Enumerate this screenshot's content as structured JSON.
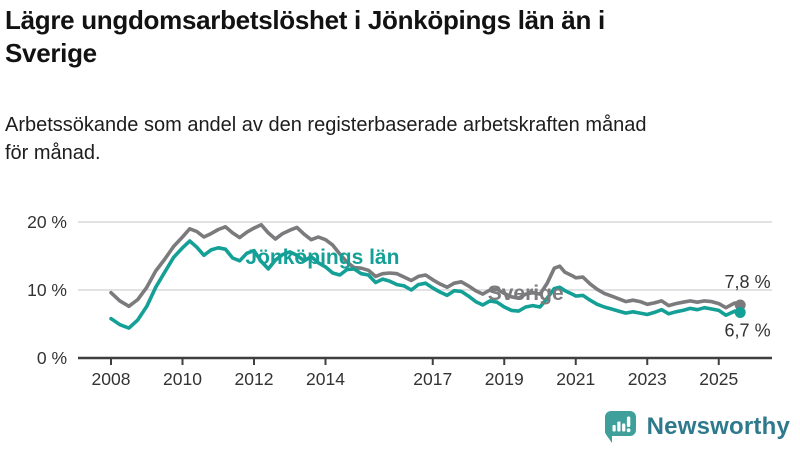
{
  "header": {
    "title_lines": [
      "Lägre ungdomsarbetslöshet i Jönköpings län än i",
      "Sverige"
    ],
    "subtitle_lines": [
      "Arbetssökande som andel av den registerbaserade arbetskraften månad",
      "för månad."
    ]
  },
  "chart_data": {
    "type": "line",
    "title": "Lägre ungdomsarbetslöshet i Jönköpings län än i Sverige",
    "subtitle": "Arbetssökande som andel av den registerbaserade arbetskraften månad för månad.",
    "unit": "%",
    "grid": "horizontal-only",
    "legend": "inline-labels",
    "xlim": [
      2007.9,
      2026.45
    ],
    "ylim": [
      0,
      22
    ],
    "x_ticks": [
      {
        "value": 2008,
        "label": "2008"
      },
      {
        "value": 2010,
        "label": "2010"
      },
      {
        "value": 2012,
        "label": "2012"
      },
      {
        "value": 2014,
        "label": "2014"
      },
      {
        "value": 2017,
        "label": "2017"
      },
      {
        "value": 2019,
        "label": "2019"
      },
      {
        "value": 2021,
        "label": "2021"
      },
      {
        "value": 2023,
        "label": "2023"
      },
      {
        "value": 2025,
        "label": "2025"
      }
    ],
    "y_ticks": [
      {
        "value": 0,
        "label": "0 %"
      },
      {
        "value": 10,
        "label": "10 %"
      },
      {
        "value": 20,
        "label": "20 %"
      }
    ],
    "colors": {
      "sverige": "#7b7b7e",
      "jonkoping": "#14a096",
      "grid": "#d9d9d9",
      "axis": "#3f3f3f",
      "tick_text": "#333333"
    },
    "series": [
      {
        "name": "Sverige",
        "color": "#7b7b7e",
        "end_label": "7,8 %",
        "end_value": 7.8,
        "points": [
          [
            2008.0,
            9.6
          ],
          [
            2008.25,
            8.4
          ],
          [
            2008.5,
            7.6
          ],
          [
            2008.75,
            8.6
          ],
          [
            2009.0,
            10.4
          ],
          [
            2009.25,
            12.8
          ],
          [
            2009.5,
            14.5
          ],
          [
            2009.75,
            16.4
          ],
          [
            2010.0,
            17.8
          ],
          [
            2010.2,
            19.0
          ],
          [
            2010.4,
            18.6
          ],
          [
            2010.6,
            17.8
          ],
          [
            2010.8,
            18.3
          ],
          [
            2011.0,
            18.9
          ],
          [
            2011.2,
            19.3
          ],
          [
            2011.4,
            18.4
          ],
          [
            2011.6,
            17.7
          ],
          [
            2011.8,
            18.5
          ],
          [
            2012.0,
            19.1
          ],
          [
            2012.2,
            19.6
          ],
          [
            2012.4,
            18.4
          ],
          [
            2012.6,
            17.5
          ],
          [
            2012.8,
            18.3
          ],
          [
            2013.0,
            18.8
          ],
          [
            2013.2,
            19.2
          ],
          [
            2013.4,
            18.2
          ],
          [
            2013.6,
            17.4
          ],
          [
            2013.8,
            17.8
          ],
          [
            2014.0,
            17.4
          ],
          [
            2014.2,
            16.6
          ],
          [
            2014.4,
            15.3
          ],
          [
            2014.6,
            14.1
          ],
          [
            2014.8,
            13.3
          ],
          [
            2015.0,
            13.2
          ],
          [
            2015.2,
            12.9
          ],
          [
            2015.4,
            12.0
          ],
          [
            2015.6,
            12.4
          ],
          [
            2015.8,
            12.5
          ],
          [
            2016.0,
            12.4
          ],
          [
            2016.2,
            11.9
          ],
          [
            2016.4,
            11.4
          ],
          [
            2016.6,
            12.0
          ],
          [
            2016.8,
            12.2
          ],
          [
            2017.0,
            11.5
          ],
          [
            2017.2,
            10.9
          ],
          [
            2017.4,
            10.4
          ],
          [
            2017.6,
            11.0
          ],
          [
            2017.8,
            11.2
          ],
          [
            2018.0,
            10.6
          ],
          [
            2018.2,
            9.9
          ],
          [
            2018.4,
            9.4
          ],
          [
            2018.6,
            10.0
          ],
          [
            2018.8,
            10.1
          ],
          [
            2019.0,
            9.5
          ],
          [
            2019.2,
            9.0
          ],
          [
            2019.4,
            8.8
          ],
          [
            2019.6,
            9.4
          ],
          [
            2019.8,
            9.6
          ],
          [
            2020.0,
            9.4
          ],
          [
            2020.2,
            11.0
          ],
          [
            2020.4,
            13.2
          ],
          [
            2020.55,
            13.5
          ],
          [
            2020.7,
            12.6
          ],
          [
            2020.9,
            12.1
          ],
          [
            2021.0,
            11.8
          ],
          [
            2021.2,
            11.9
          ],
          [
            2021.4,
            10.9
          ],
          [
            2021.6,
            10.1
          ],
          [
            2021.8,
            9.5
          ],
          [
            2022.0,
            9.1
          ],
          [
            2022.2,
            8.7
          ],
          [
            2022.4,
            8.3
          ],
          [
            2022.6,
            8.5
          ],
          [
            2022.8,
            8.3
          ],
          [
            2023.0,
            7.9
          ],
          [
            2023.2,
            8.1
          ],
          [
            2023.4,
            8.4
          ],
          [
            2023.6,
            7.7
          ],
          [
            2023.8,
            8.0
          ],
          [
            2024.0,
            8.2
          ],
          [
            2024.2,
            8.4
          ],
          [
            2024.4,
            8.2
          ],
          [
            2024.6,
            8.4
          ],
          [
            2024.8,
            8.3
          ],
          [
            2025.0,
            8.0
          ],
          [
            2025.2,
            7.4
          ],
          [
            2025.45,
            8.1
          ],
          [
            2025.6,
            7.8
          ]
        ]
      },
      {
        "name": "Jönköpings län",
        "color": "#14a096",
        "end_label": "6,7 %",
        "end_value": 6.7,
        "points": [
          [
            2008.0,
            5.8
          ],
          [
            2008.25,
            4.9
          ],
          [
            2008.5,
            4.4
          ],
          [
            2008.75,
            5.6
          ],
          [
            2009.0,
            7.6
          ],
          [
            2009.25,
            10.4
          ],
          [
            2009.5,
            12.6
          ],
          [
            2009.75,
            14.8
          ],
          [
            2010.0,
            16.2
          ],
          [
            2010.2,
            17.2
          ],
          [
            2010.4,
            16.3
          ],
          [
            2010.6,
            15.1
          ],
          [
            2010.8,
            15.9
          ],
          [
            2011.0,
            16.2
          ],
          [
            2011.2,
            16.0
          ],
          [
            2011.4,
            14.7
          ],
          [
            2011.6,
            14.3
          ],
          [
            2011.8,
            15.4
          ],
          [
            2012.0,
            15.8
          ],
          [
            2012.2,
            14.2
          ],
          [
            2012.4,
            13.1
          ],
          [
            2012.6,
            14.4
          ],
          [
            2012.8,
            15.2
          ],
          [
            2013.0,
            15.6
          ],
          [
            2013.2,
            15.1
          ],
          [
            2013.4,
            14.3
          ],
          [
            2013.6,
            14.9
          ],
          [
            2013.8,
            14.0
          ],
          [
            2014.0,
            13.4
          ],
          [
            2014.2,
            12.5
          ],
          [
            2014.4,
            12.2
          ],
          [
            2014.6,
            13.0
          ],
          [
            2014.8,
            13.1
          ],
          [
            2015.0,
            12.4
          ],
          [
            2015.2,
            12.2
          ],
          [
            2015.4,
            11.1
          ],
          [
            2015.6,
            11.6
          ],
          [
            2015.8,
            11.3
          ],
          [
            2016.0,
            10.8
          ],
          [
            2016.2,
            10.6
          ],
          [
            2016.4,
            10.0
          ],
          [
            2016.6,
            10.8
          ],
          [
            2016.8,
            11.0
          ],
          [
            2017.0,
            10.3
          ],
          [
            2017.2,
            9.7
          ],
          [
            2017.4,
            9.2
          ],
          [
            2017.6,
            9.9
          ],
          [
            2017.8,
            9.8
          ],
          [
            2018.0,
            9.1
          ],
          [
            2018.2,
            8.3
          ],
          [
            2018.4,
            7.8
          ],
          [
            2018.6,
            8.4
          ],
          [
            2018.8,
            8.2
          ],
          [
            2019.0,
            7.5
          ],
          [
            2019.2,
            7.0
          ],
          [
            2019.4,
            6.9
          ],
          [
            2019.6,
            7.5
          ],
          [
            2019.8,
            7.7
          ],
          [
            2020.0,
            7.5
          ],
          [
            2020.2,
            8.8
          ],
          [
            2020.4,
            10.2
          ],
          [
            2020.55,
            10.4
          ],
          [
            2020.7,
            9.9
          ],
          [
            2020.9,
            9.4
          ],
          [
            2021.0,
            9.1
          ],
          [
            2021.2,
            9.2
          ],
          [
            2021.4,
            8.5
          ],
          [
            2021.6,
            7.9
          ],
          [
            2021.8,
            7.5
          ],
          [
            2022.0,
            7.2
          ],
          [
            2022.2,
            6.9
          ],
          [
            2022.4,
            6.6
          ],
          [
            2022.6,
            6.8
          ],
          [
            2022.8,
            6.6
          ],
          [
            2023.0,
            6.4
          ],
          [
            2023.2,
            6.7
          ],
          [
            2023.4,
            7.1
          ],
          [
            2023.6,
            6.5
          ],
          [
            2023.8,
            6.8
          ],
          [
            2024.0,
            7.0
          ],
          [
            2024.2,
            7.3
          ],
          [
            2024.4,
            7.1
          ],
          [
            2024.6,
            7.4
          ],
          [
            2024.8,
            7.2
          ],
          [
            2025.0,
            7.0
          ],
          [
            2025.2,
            6.3
          ],
          [
            2025.45,
            6.9
          ],
          [
            2025.6,
            6.7
          ]
        ]
      }
    ],
    "inline_labels": [
      {
        "text": "Jönköpings län",
        "color": "#14a096",
        "x_year": 2011.76,
        "y_value": 14.9,
        "anchor": "start"
      },
      {
        "text": "Sverige",
        "color": "#7b7b7e",
        "x_year": 2019.6,
        "y_value": 9.6,
        "anchor": "middle"
      }
    ],
    "end_labels": [
      {
        "text": "7,8 %",
        "x_year": 2026.45,
        "y_value": 11.2,
        "anchor": "end"
      },
      {
        "text": "6,7 %",
        "x_year": 2026.45,
        "y_value": 4.1,
        "anchor": "end"
      }
    ]
  },
  "footer": {
    "brand": "Newsworthy",
    "brand_icon": "bar-chart-speech-bubble-icon",
    "brand_color": "#2e7a8c",
    "icon_color": "#3fa09b"
  }
}
